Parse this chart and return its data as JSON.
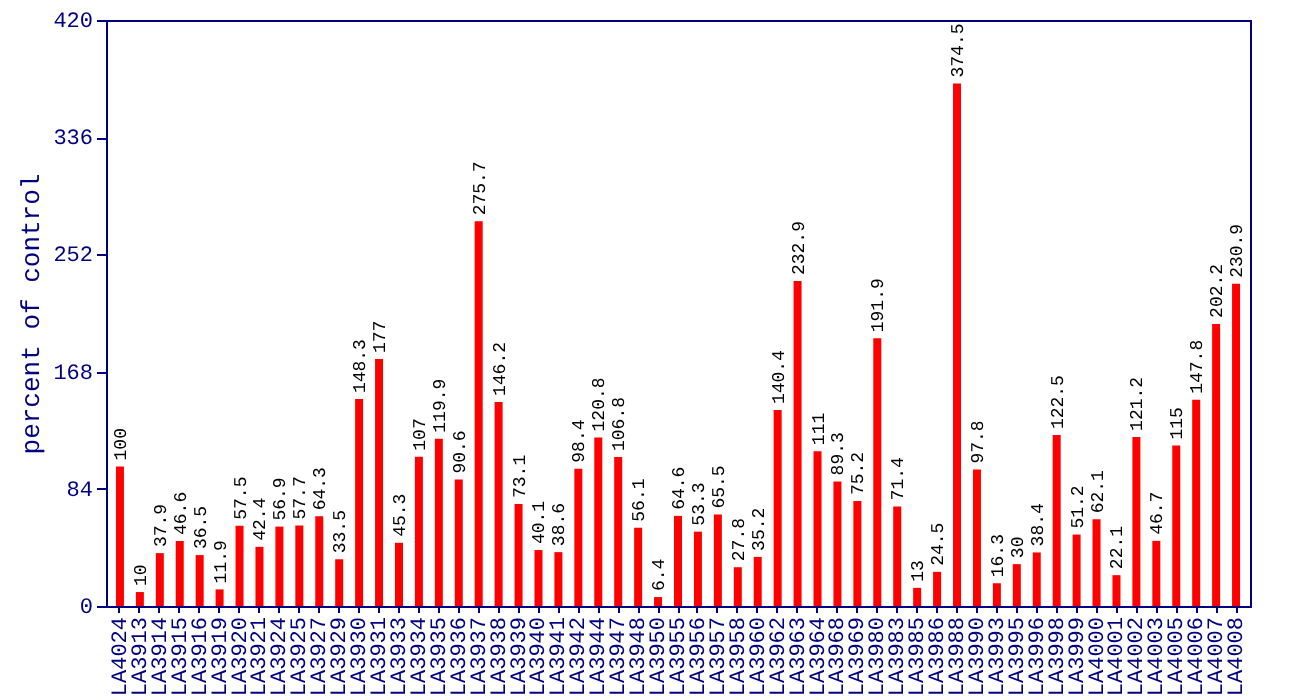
{
  "chart_data": {
    "type": "bar",
    "ylabel": "percent of control",
    "categories": [
      "LA4024",
      "LA3913",
      "LA3914",
      "LA3915",
      "LA3916",
      "LA3919",
      "LA3920",
      "LA3921",
      "LA3924",
      "LA3925",
      "LA3927",
      "LA3929",
      "LA3930",
      "LA3931",
      "LA3933",
      "LA3934",
      "LA3935",
      "LA3936",
      "LA3937",
      "LA3938",
      "LA3939",
      "LA3940",
      "LA3941",
      "LA3942",
      "LA3944",
      "LA3947",
      "LA3948",
      "LA3950",
      "LA3955",
      "LA3956",
      "LA3957",
      "LA3958",
      "LA3960",
      "LA3962",
      "LA3963",
      "LA3964",
      "LA3968",
      "LA3969",
      "LA3980",
      "LA3983",
      "LA3985",
      "LA3986",
      "LA3988",
      "LA3990",
      "LA3993",
      "LA3995",
      "LA3996",
      "LA3998",
      "LA3999",
      "LA4000",
      "LA4001",
      "LA4002",
      "LA4003",
      "LA4005",
      "LA4006",
      "LA4007",
      "LA4008"
    ],
    "values": [
      100,
      10,
      37.9,
      46.6,
      36.5,
      11.9,
      57.5,
      42.4,
      56.9,
      57.7,
      64.3,
      33.5,
      148.3,
      177,
      45.3,
      107,
      119.9,
      90.6,
      275.7,
      146.2,
      73.1,
      40.1,
      38.6,
      98.4,
      120.8,
      106.8,
      56.1,
      6.4,
      64.6,
      53.3,
      65.5,
      27.8,
      35.2,
      140.4,
      232.9,
      111,
      89.3,
      75.2,
      191.9,
      71.4,
      13,
      24.5,
      374.5,
      97.8,
      16.3,
      30,
      38.4,
      122.5,
      51.2,
      62.1,
      22.1,
      121.2,
      46.7,
      115,
      147.8,
      202.2,
      230.9
    ],
    "color": "#ff0000",
    "ylim": [
      0,
      420
    ],
    "yticks": [
      0,
      84,
      168,
      252,
      336,
      420
    ],
    "data_labels": true,
    "grid": false
  }
}
